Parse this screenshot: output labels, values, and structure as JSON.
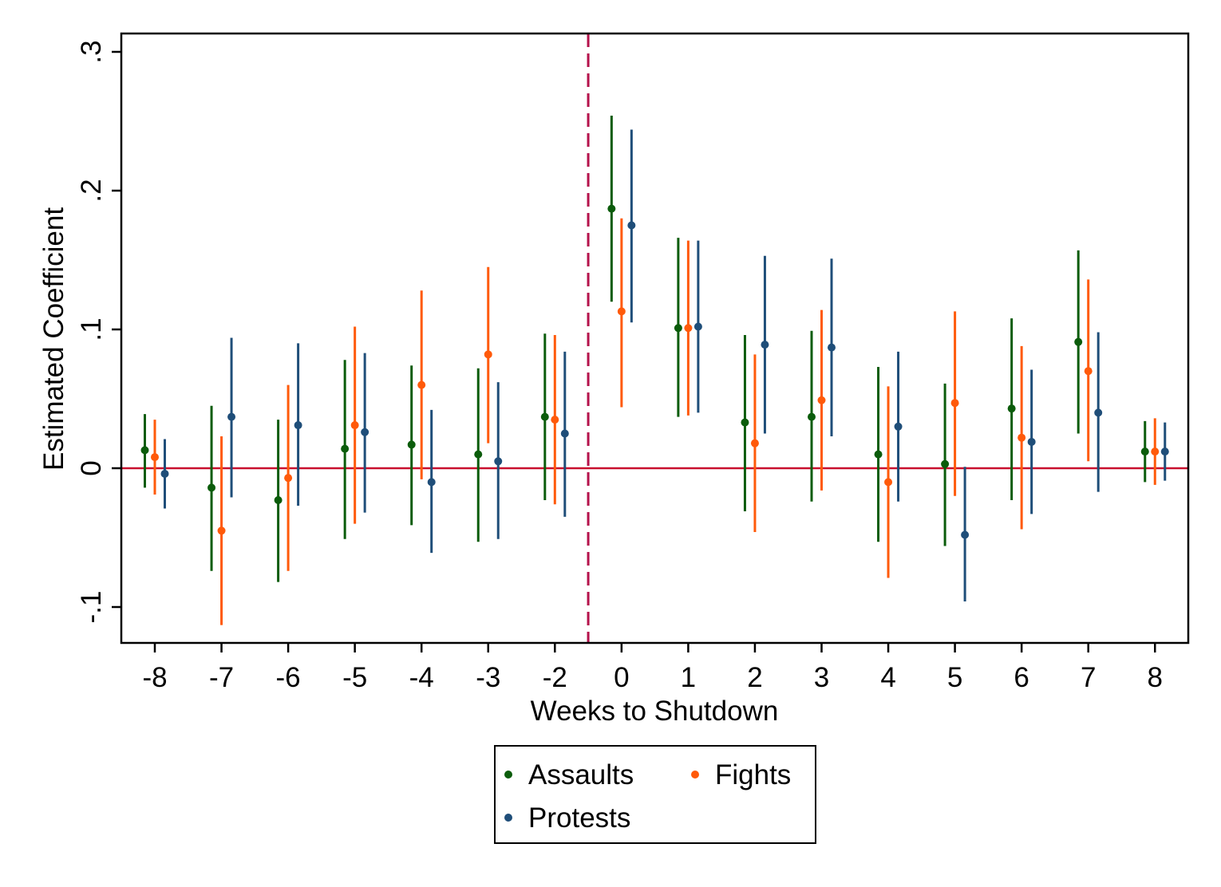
{
  "chart_data": {
    "type": "scatter",
    "subtype": "coefficient plot with confidence intervals",
    "xlabel": "Weeks to Shutdown",
    "ylabel": "Estimated Coefficient",
    "categories": [
      "-8",
      "-7",
      "-6",
      "-5",
      "-4",
      "-3",
      "-2",
      "0",
      "1",
      "2",
      "3",
      "4",
      "5",
      "6",
      "7",
      "8"
    ],
    "ylim": [
      -0.128,
      0.315
    ],
    "yticks": [
      -0.1,
      0,
      0.1,
      0.2,
      0.3
    ],
    "ytick_labels": [
      "-.1",
      "0",
      ".1",
      ".2",
      ".3"
    ],
    "grid": false,
    "reference_lines": [
      {
        "axis": "y",
        "value": 0,
        "style": "solid",
        "color": "#c8102e"
      },
      {
        "axis": "x",
        "between": [
          "-2",
          "0"
        ],
        "style": "dashed",
        "color": "#b5124b"
      }
    ],
    "legend": {
      "placement": "bottom-center",
      "entries": [
        "Assaults",
        "Fights",
        "Protests"
      ]
    },
    "series": [
      {
        "name": "Assaults",
        "color": "#0b5c0b",
        "values": [
          0.013,
          -0.014,
          -0.023,
          0.014,
          0.017,
          0.01,
          0.037,
          0.187,
          0.101,
          0.033,
          0.037,
          0.01,
          0.003,
          0.043,
          0.091,
          0.012
        ],
        "ci_low": [
          -0.014,
          -0.074,
          -0.082,
          -0.051,
          -0.041,
          -0.053,
          -0.023,
          0.12,
          0.037,
          -0.031,
          -0.024,
          -0.053,
          -0.056,
          -0.023,
          0.025,
          -0.01
        ],
        "ci_high": [
          0.039,
          0.045,
          0.035,
          0.078,
          0.074,
          0.072,
          0.097,
          0.254,
          0.166,
          0.096,
          0.099,
          0.073,
          0.061,
          0.108,
          0.157,
          0.034
        ]
      },
      {
        "name": "Fights",
        "color": "#ff5a0a",
        "values": [
          0.008,
          -0.045,
          -0.007,
          0.031,
          0.06,
          0.082,
          0.035,
          0.113,
          0.101,
          0.018,
          0.049,
          -0.01,
          0.047,
          0.022,
          0.07,
          0.012
        ],
        "ci_low": [
          -0.019,
          -0.113,
          -0.074,
          -0.04,
          -0.008,
          0.018,
          -0.026,
          0.044,
          0.038,
          -0.046,
          -0.016,
          -0.079,
          -0.02,
          -0.044,
          0.005,
          -0.012
        ],
        "ci_high": [
          0.035,
          0.023,
          0.06,
          0.102,
          0.128,
          0.145,
          0.096,
          0.18,
          0.164,
          0.082,
          0.114,
          0.059,
          0.113,
          0.088,
          0.136,
          0.036
        ]
      },
      {
        "name": "Protests",
        "color": "#1f4e79",
        "values": [
          -0.004,
          0.037,
          0.031,
          0.026,
          -0.01,
          0.005,
          0.025,
          0.175,
          0.102,
          0.089,
          0.087,
          0.03,
          -0.048,
          0.019,
          0.04,
          0.012
        ],
        "ci_low": [
          -0.029,
          -0.021,
          -0.027,
          -0.032,
          -0.061,
          -0.051,
          -0.035,
          0.105,
          0.04,
          0.025,
          0.023,
          -0.024,
          -0.096,
          -0.033,
          -0.017,
          -0.009
        ],
        "ci_high": [
          0.021,
          0.094,
          0.09,
          0.083,
          0.042,
          0.062,
          0.084,
          0.244,
          0.164,
          0.153,
          0.151,
          0.084,
          0.001,
          0.071,
          0.098,
          0.033
        ]
      }
    ]
  }
}
